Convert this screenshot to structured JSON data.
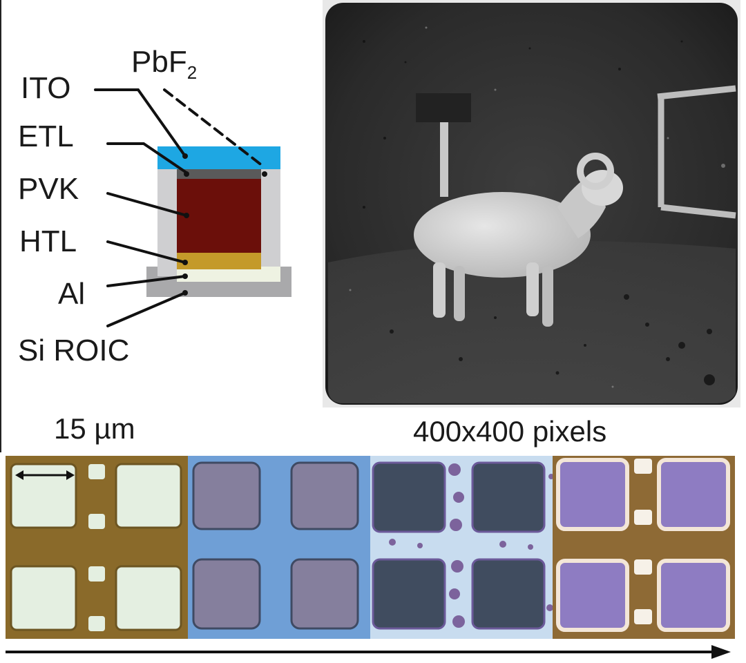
{
  "layer_labels": {
    "ito": "ITO",
    "pbf2_base": "PbF",
    "pbf2_sub": "2",
    "etl": "ETL",
    "pvk": "PVK",
    "htl": "HTL",
    "al": "Al",
    "si_roic": "Si ROIC"
  },
  "scale_label": "15 µm",
  "pixel_label": "400x400 pixels",
  "colors": {
    "ito": "#1ea7e3",
    "etl": "#5a5a5a",
    "pvk": "#6b0f0a",
    "htl": "#c49a2a",
    "al": "#eef2e2",
    "roic": "#a9a9ab",
    "encapsulation": "#cfcfd1"
  }
}
